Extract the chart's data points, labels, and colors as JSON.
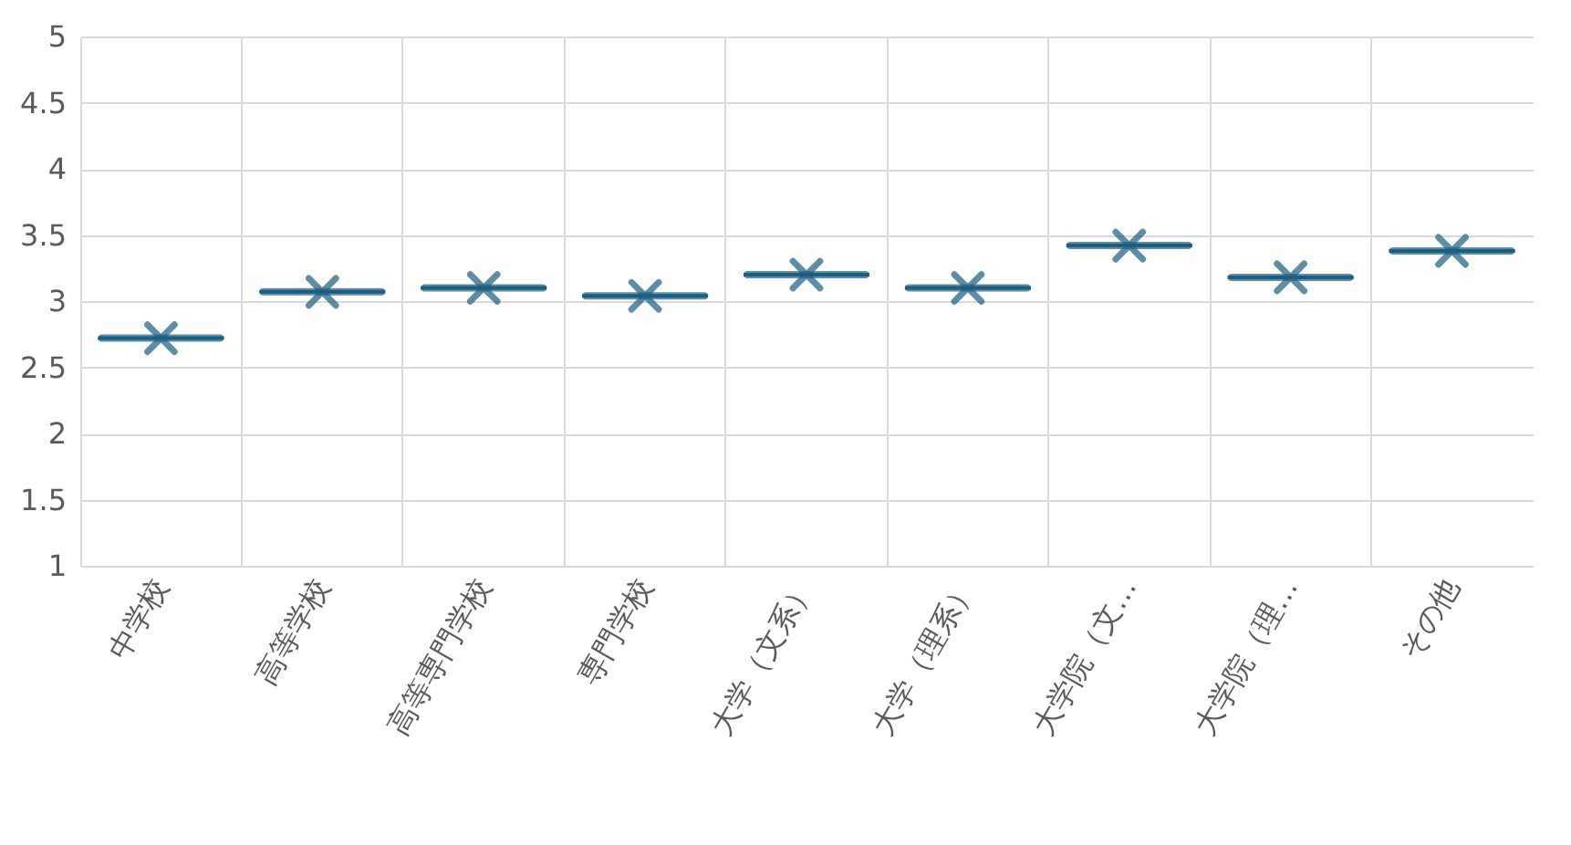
{
  "chart_data": {
    "type": "box",
    "categories": [
      "中学校",
      "高等学校",
      "高等専門学校",
      "専門学校",
      "大学（文系）",
      "大学（理系）",
      "大学院（文…",
      "大学院（理…",
      "その他"
    ],
    "series": [
      {
        "color": "#1b5e80",
        "boxes": [
          {
            "low": 2.72,
            "q1": 2.72,
            "median": 2.72,
            "q3": 2.72,
            "high": 2.72,
            "mean": 2.72
          },
          {
            "low": 3.07,
            "q1": 3.07,
            "median": 3.07,
            "q3": 3.07,
            "high": 3.07,
            "mean": 3.07
          },
          {
            "low": 3.1,
            "q1": 3.1,
            "median": 3.1,
            "q3": 3.1,
            "high": 3.1,
            "mean": 3.1
          },
          {
            "low": 3.04,
            "q1": 3.04,
            "median": 3.04,
            "q3": 3.04,
            "high": 3.04,
            "mean": 3.04
          },
          {
            "low": 3.2,
            "q1": 3.2,
            "median": 3.2,
            "q3": 3.2,
            "high": 3.2,
            "mean": 3.2
          },
          {
            "low": 3.1,
            "q1": 3.1,
            "median": 3.1,
            "q3": 3.1,
            "high": 3.1,
            "mean": 3.1
          },
          {
            "low": 3.42,
            "q1": 3.42,
            "median": 3.42,
            "q3": 3.42,
            "high": 3.42,
            "mean": 3.42
          },
          {
            "low": 3.18,
            "q1": 3.18,
            "median": 3.18,
            "q3": 3.18,
            "high": 3.18,
            "mean": 3.18
          },
          {
            "low": 3.38,
            "q1": 3.38,
            "median": 3.38,
            "q3": 3.38,
            "high": 3.38,
            "mean": 3.38
          }
        ]
      }
    ],
    "ylim": [
      1,
      5
    ],
    "yticks": [
      1,
      1.5,
      2,
      2.5,
      3,
      3.5,
      4,
      4.5,
      5
    ],
    "grid": true
  }
}
